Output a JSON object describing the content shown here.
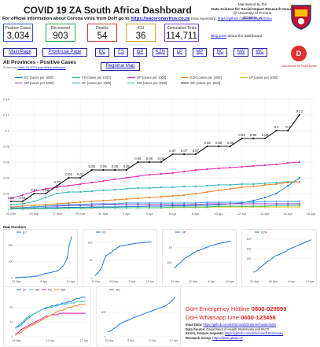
{
  "header": {
    "title": "COVID 19 ZA South Africa Dashboard",
    "maintained_by": "Maintained by the",
    "group": "Data Science for Social Impact Research Group",
    "university": "@ University of Pretoria",
    "twitter": "@DSFSI_Ai",
    "official_info": "For official information about Corona virus from DoH go to",
    "official_url": "https://sacoronavirus.co.za",
    "repo_label": "Data repository:",
    "repo_url": "https://github.com/dsfsi/covid19za"
  },
  "stats": [
    {
      "label": "Positive Cases",
      "value": "3,034",
      "color": "#3050c8"
    },
    {
      "label": "Recovered",
      "value": "903",
      "color": "#2aa34a"
    },
    {
      "label": "Deaths",
      "value": "54",
      "color": "#d93030"
    },
    {
      "label": "ICU",
      "value": "36",
      "color": "#d9a020"
    },
    {
      "label": "Cumulative Tests",
      "value": "114,711",
      "color": "#8040c0"
    }
  ],
  "blog": {
    "link": "Blog post",
    "text": "about the dashboard"
  },
  "nav": {
    "main": "Main Page",
    "provincial": "Provincial Page",
    "provinces": [
      "EC",
      "FS",
      "GP",
      "KZN",
      "LP",
      "MP",
      "NC",
      "NW",
      "WC"
    ],
    "regional": "Regional Map"
  },
  "logo": {
    "letter": "D",
    "caption": "Data Science for Social Impact"
  },
  "section": {
    "title": "All Provinces - Positive Cases",
    "sub_prefix": "Scaled by",
    "sub_link": "Stats SA 2019 population estimates"
  },
  "legend": [
    {
      "name": "EC [cases per 1000]",
      "color": "#1f77d4"
    },
    {
      "name": "FS [cases per 1000]",
      "color": "#2bb7b7"
    },
    {
      "name": "GP [cases per 1000]",
      "color": "#e020b0"
    },
    {
      "name": "KZN [cases per 1000]",
      "color": "#f08020"
    },
    {
      "name": "LP [cases per 1000]",
      "color": "#e0c020"
    },
    {
      "name": "MP [cases per 1000]",
      "color": "#a040d0"
    },
    {
      "name": "NC [cases per 1000]",
      "color": "#30a0e0"
    },
    {
      "name": "NW [cases per 1000]",
      "color": "#30c080"
    },
    {
      "name": "WC [cases per 1000]",
      "color": "#111111"
    }
  ],
  "chart_data": {
    "type": "line",
    "x": [
      "23 Mar",
      "24 Mar",
      "25 Mar",
      "26 Mar",
      "27 Mar",
      "28 Mar",
      "29 Mar",
      "30 Mar",
      "31 Mar",
      "1 Apr",
      "2 Apr",
      "3 Apr",
      "4 Apr",
      "5 Apr",
      "6 Apr",
      "7 Apr",
      "8 Apr",
      "9 Apr",
      "10 Apr",
      "11 Apr",
      "12 Apr",
      "13 Apr",
      "14 Apr",
      "15 Apr",
      "16 Apr",
      "17 Apr"
    ],
    "tick_labels": [
      "23 Mar",
      "25 Mar",
      "27 Mar",
      "29 Mar",
      "31 Mar",
      "2 Apr",
      "4 Apr",
      "6 Apr",
      "8 Apr",
      "10 Apr",
      "12 Apr",
      "14 Apr",
      "16 Apr",
      "18 Apr"
    ],
    "yticks": [
      "0",
      "0.02",
      "0.04",
      "0.06",
      "0.08",
      "0.1",
      "0.12",
      "0.14"
    ],
    "ylim": [
      0,
      0.14
    ],
    "data_labels_series": "WC",
    "series": [
      {
        "name": "EC",
        "color": "#1f77d4",
        "values": [
          0.0005,
          0.001,
          0.0015,
          0.002,
          0.002,
          0.0025,
          0.0025,
          0.003,
          0.003,
          0.003,
          0.0035,
          0.0035,
          0.004,
          0.004,
          0.0045,
          0.0045,
          0.005,
          0.005,
          0.006,
          0.007,
          0.008,
          0.011,
          0.015,
          0.02,
          0.03,
          0.04
        ]
      },
      {
        "name": "FS",
        "color": "#2bb7b7",
        "values": [
          0.006,
          0.007,
          0.01,
          0.015,
          0.02,
          0.022,
          0.022,
          0.023,
          0.024,
          0.025,
          0.026,
          0.027,
          0.027,
          0.028,
          0.028,
          0.029,
          0.029,
          0.03,
          0.031,
          0.031,
          0.032,
          0.032,
          0.033,
          0.034,
          0.035,
          0.035
        ]
      },
      {
        "name": "GP",
        "color": "#e020b0",
        "values": [
          0.014,
          0.018,
          0.023,
          0.026,
          0.028,
          0.03,
          0.032,
          0.034,
          0.036,
          0.038,
          0.04,
          0.042,
          0.044,
          0.045,
          0.046,
          0.048,
          0.05,
          0.051,
          0.052,
          0.053,
          0.054,
          0.055,
          0.056,
          0.057,
          0.059,
          0.06
        ]
      },
      {
        "name": "KZN",
        "color": "#f08020",
        "values": [
          0.003,
          0.004,
          0.005,
          0.006,
          0.007,
          0.008,
          0.009,
          0.01,
          0.011,
          0.012,
          0.013,
          0.014,
          0.015,
          0.016,
          0.017,
          0.018,
          0.02,
          0.022,
          0.024,
          0.026,
          0.028,
          0.029,
          0.031,
          0.032,
          0.034,
          0.035
        ]
      },
      {
        "name": "LP",
        "color": "#e0c020",
        "values": [
          0.0005,
          0.0005,
          0.001,
          0.001,
          0.001,
          0.0015,
          0.0015,
          0.0015,
          0.002,
          0.002,
          0.002,
          0.002,
          0.002,
          0.002,
          0.0025,
          0.0025,
          0.0025,
          0.0025,
          0.003,
          0.003,
          0.003,
          0.003,
          0.003,
          0.003,
          0.003,
          0.003
        ]
      },
      {
        "name": "MP",
        "color": "#a040d0",
        "values": [
          0.001,
          0.002,
          0.003,
          0.004,
          0.004,
          0.005,
          0.005,
          0.005,
          0.006,
          0.006,
          0.006,
          0.006,
          0.006,
          0.006,
          0.006,
          0.006,
          0.006,
          0.007,
          0.007,
          0.007,
          0.007,
          0.007,
          0.007,
          0.007,
          0.007,
          0.007
        ]
      },
      {
        "name": "NC",
        "color": "#30a0e0",
        "values": [
          0.002,
          0.002,
          0.003,
          0.004,
          0.005,
          0.006,
          0.006,
          0.007,
          0.007,
          0.007,
          0.008,
          0.008,
          0.008,
          0.008,
          0.008,
          0.008,
          0.008,
          0.009,
          0.009,
          0.009,
          0.009,
          0.009,
          0.01,
          0.01,
          0.01,
          0.01
        ]
      },
      {
        "name": "NW",
        "color": "#30c080",
        "values": [
          0.0005,
          0.0005,
          0.001,
          0.001,
          0.001,
          0.0015,
          0.0015,
          0.002,
          0.002,
          0.002,
          0.002,
          0.002,
          0.002,
          0.002,
          0.003,
          0.003,
          0.003,
          0.003,
          0.004,
          0.004,
          0.004,
          0.004,
          0.004,
          0.005,
          0.005,
          0.005
        ]
      },
      {
        "name": "WC",
        "color": "#111111",
        "values": [
          0.01,
          0.01,
          0.02,
          0.02,
          0.03,
          0.04,
          0.04,
          0.05,
          0.05,
          0.05,
          0.05,
          0.06,
          0.06,
          0.06,
          0.07,
          0.07,
          0.07,
          0.08,
          0.08,
          0.08,
          0.09,
          0.09,
          0.09,
          0.1,
          0.1,
          0.12
        ],
        "labels": [
          "0.01",
          "0.01",
          "0.02",
          "0.02",
          "0.03",
          "0.04",
          "0.04",
          "0.05",
          "0.05",
          "0.05",
          "0.05",
          "0.06",
          "0.06",
          "0.06",
          "0.07",
          "0.07",
          "0.07",
          "0.08",
          "0.08",
          "0.08",
          "0.09",
          "0.09",
          "0.09",
          "0.1",
          "0.1",
          "0.12"
        ]
      }
    ]
  },
  "raw_numbers": {
    "title": "Raw Numbers",
    "charts": [
      {
        "name": "EC",
        "legend": [
          "EC"
        ],
        "color": "#1f77d4",
        "yticks": [
          "0",
          "100",
          "200"
        ],
        "ymax": 260,
        "xticks": [
          "23 Mar",
          "5 Apr",
          "12 Apr"
        ],
        "values": [
          [
            1,
            1,
            2,
            3,
            3,
            5,
            5,
            5,
            9,
            9,
            12,
            17,
            19,
            25,
            27,
            31,
            33,
            37,
            40,
            45,
            55,
            70,
            90,
            120,
            200,
            250
          ]
        ]
      },
      {
        "name": "FS",
        "legend": [
          "FS"
        ],
        "color": "#1f77d4",
        "yticks": [
          "0",
          "50",
          "100"
        ],
        "ymax": 120,
        "xticks": [
          "22 Mar",
          "29 Mar",
          "5 Apr",
          "12 Apr"
        ],
        "values": [
          [
            7,
            12,
            20,
            30,
            50,
            63,
            67,
            70,
            77,
            80,
            85,
            89,
            90,
            91,
            92,
            94,
            95,
            96,
            97,
            98,
            98,
            99,
            100,
            100,
            101,
            101
          ]
        ]
      },
      {
        "name": "GP",
        "color": "#1f77d4",
        "legend": [
          "GP"
        ],
        "yticks": [
          "500",
          "1k"
        ],
        "ymax": 1400,
        "xticks": [
          "23 Mar",
          "30 Mar",
          "6 Apr",
          "13 Apr"
        ],
        "values": [
          [
            320,
            400,
            460,
            520,
            600,
            660,
            700,
            740,
            800,
            840,
            880,
            900,
            930,
            960,
            990,
            1020,
            1050,
            1070,
            1090,
            1110,
            1130,
            1150,
            1160,
            1170,
            1190,
            1200
          ]
        ]
      },
      {
        "name": "KZN",
        "color": "#1f77d4",
        "legend": [
          "KZN"
        ],
        "yticks": [
          "200",
          "300",
          "400"
        ],
        "ymax": 440,
        "xticks": [
          "23 Mar",
          "30 Mar",
          "6 Apr",
          "13 Apr"
        ],
        "values": [
          [
            60,
            70,
            90,
            110,
            130,
            150,
            170,
            180,
            200,
            220,
            230,
            240,
            250,
            260,
            270,
            290,
            300,
            310,
            320,
            330,
            340,
            350,
            360,
            370,
            380,
            390
          ]
        ]
      },
      {
        "name": "Small provinces",
        "legend": [
          "LP",
          "MP",
          "NC",
          "NW"
        ],
        "colors": [
          "#1f77d4",
          "#30c0c0",
          "#e020b0",
          "#f08020"
        ],
        "yticks": [
          "0",
          "10",
          "20"
        ],
        "ymax": 30,
        "xticks": [
          "29 Mar",
          "12 Apr",
          "17 Apr"
        ],
        "values": [
          [
            6,
            7,
            8,
            10,
            12,
            13,
            15,
            16,
            17,
            18,
            19,
            20,
            20,
            21,
            21,
            22,
            22,
            23,
            23,
            24,
            24,
            25,
            26,
            26,
            27,
            27
          ],
          [
            6,
            8,
            9,
            11,
            13,
            14,
            15,
            16,
            17,
            18,
            19,
            19,
            20,
            20,
            21,
            21,
            22,
            22,
            22,
            23,
            23,
            23,
            24,
            24,
            24,
            24
          ],
          [
            2,
            3,
            5,
            6,
            7,
            8,
            9,
            10,
            11,
            12,
            13,
            14,
            14,
            15,
            15,
            15,
            16,
            16,
            16,
            16,
            16,
            16,
            16,
            16,
            16,
            16
          ],
          [
            1,
            2,
            3,
            5,
            6,
            7,
            8,
            9,
            10,
            11,
            12,
            13,
            14,
            15,
            16,
            17,
            18,
            18,
            19,
            20,
            20,
            21,
            21,
            22,
            22,
            22
          ]
        ]
      },
      {
        "name": "WC",
        "legend": [
          "WC"
        ],
        "color": "#1f77d4",
        "yticks": [
          "0",
          "500"
        ],
        "ymax": 900,
        "xticks": [
          "28 Mar",
          "5 Apr",
          "12 Apr",
          "17 Apr"
        ],
        "values": [
          [
            100,
            130,
            170,
            200,
            250,
            280,
            310,
            330,
            350,
            380,
            400,
            420,
            440,
            460,
            480,
            500,
            520,
            540,
            560,
            580,
            600,
            620,
            650,
            690,
            730,
            800
          ]
        ]
      }
    ]
  },
  "hotline": {
    "emergency_label": "DoH Emergency Hotline",
    "emergency_number": "0800-029999",
    "whatsapp_label": "DoH Whatsapp Line",
    "whatsapp_number": "0600-123456"
  },
  "info": {
    "input_label": "Input Data:",
    "input_url": "https://github.com/dsfsi/covid19za/tree/master/data",
    "source_label": "Data Source:",
    "source_text": "Department of Health Statements and NICD",
    "errors_label": "Errors, Feature requests:",
    "errors_url": "https://github.com/dsfsi/covid19za/issues",
    "group_label": "Research Group:",
    "group_url": "https://dsfsi.github.io/"
  }
}
